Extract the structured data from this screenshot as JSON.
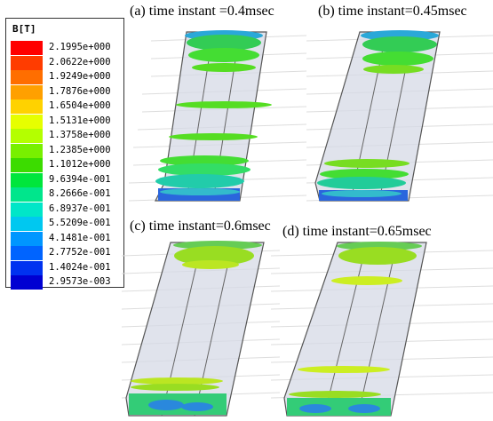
{
  "legend": {
    "title": "B[T]",
    "items": [
      {
        "label": "2.1995e+000",
        "color": "#ff0000"
      },
      {
        "label": "2.0622e+000",
        "color": "#ff3c00"
      },
      {
        "label": "1.9249e+000",
        "color": "#ff6e00"
      },
      {
        "label": "1.7876e+000",
        "color": "#ffa000"
      },
      {
        "label": "1.6504e+000",
        "color": "#ffd200"
      },
      {
        "label": "1.5131e+000",
        "color": "#e6ff00"
      },
      {
        "label": "1.3758e+000",
        "color": "#b4ff00"
      },
      {
        "label": "1.2385e+000",
        "color": "#78f000"
      },
      {
        "label": "1.1012e+000",
        "color": "#3cdc00"
      },
      {
        "label": "9.6394e-001",
        "color": "#00e63c"
      },
      {
        "label": "8.2666e-001",
        "color": "#00e68c"
      },
      {
        "label": "6.8937e-001",
        "color": "#00e6c8"
      },
      {
        "label": "5.5209e-001",
        "color": "#00c8f0"
      },
      {
        "label": "4.1481e-001",
        "color": "#0096ff"
      },
      {
        "label": "2.7752e-001",
        "color": "#0064ff"
      },
      {
        "label": "1.4024e-001",
        "color": "#0032f0"
      },
      {
        "label": "2.9573e-003",
        "color": "#0000d2"
      }
    ]
  },
  "panels": [
    {
      "title": "(a) time instant =0.4msec"
    },
    {
      "title": "(b) time instant=0.45msec"
    },
    {
      "title": "(c) time instant=0.6msec"
    },
    {
      "title": "(d) time instant=0.65msec"
    }
  ],
  "colors": {
    "grid": "#d9d9d9",
    "box_fill": "#d6d9e6",
    "box_edge": "#555555",
    "green_band": "#44dd22",
    "yellow_band": "#c8ee22",
    "blue_band": "#2266dd"
  }
}
